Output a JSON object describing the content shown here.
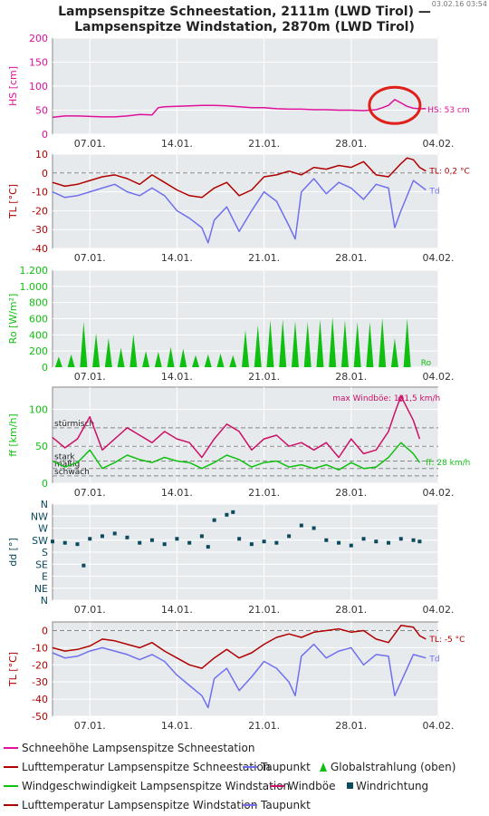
{
  "timestamp": "03.02.16 03:54",
  "title": "Lampsenspitze Schneestation, 2111m (LWD Tirol) — Lampsenspitze Windstation, 2870m (LWD Tirol)",
  "colors": {
    "snow": "#e0109a",
    "temp": "#b00000",
    "dew": "#7070ee",
    "radiation": "#10c010",
    "wind": "#10c010",
    "gust": "#cc1066",
    "direction": "#0b4a5e",
    "axis_hs": "#e0109a",
    "axis_temp": "#b00000",
    "axis_ro": "#10c010",
    "axis_ff": "#10c010",
    "axis_dd": "#0b4a5e",
    "panel_bg": "#e6eaed",
    "highlight_circle": "#e0201a"
  },
  "chart_data": [
    {
      "type": "line",
      "id": "hs",
      "ylabel": "HS [cm]",
      "ylim": [
        0,
        200
      ],
      "yticks": [
        0,
        50,
        100,
        150,
        200
      ],
      "xlim": [
        0,
        31
      ],
      "xticks": [
        3,
        10,
        17,
        24,
        31
      ],
      "xticklabels": [
        "07.01.",
        "14.01.",
        "21.01.",
        "28.01.",
        "04.02."
      ],
      "series": [
        {
          "name": "Schneehöhe Lampsenspitze Schneestation",
          "color": "snow",
          "x": [
            0,
            1,
            2,
            3,
            4,
            5,
            6,
            7,
            8,
            8.5,
            9,
            10,
            11,
            12,
            13,
            14,
            15,
            16,
            17,
            18,
            19,
            20,
            21,
            22,
            23,
            24,
            25,
            26,
            26.5,
            27,
            27.5,
            28,
            28.5,
            29,
            29.5,
            30
          ],
          "y": [
            35,
            38,
            38,
            37,
            36,
            36,
            38,
            41,
            40,
            55,
            57,
            58,
            59,
            60,
            60,
            59,
            57,
            55,
            55,
            53,
            52,
            52,
            51,
            51,
            50,
            50,
            49,
            51,
            55,
            60,
            72,
            65,
            58,
            54,
            53,
            53
          ]
        }
      ],
      "annotations": [
        {
          "text": "HS: 53 cm"
        }
      ],
      "highlight": {
        "x": 27.5,
        "y": 60
      }
    },
    {
      "type": "line",
      "id": "tl_schnee",
      "ylabel": "TL [°C]",
      "ylim": [
        -40,
        10
      ],
      "yticks": [
        -40,
        -30,
        -20,
        -10,
        0,
        10
      ],
      "xlim": [
        0,
        31
      ],
      "xticks": [
        3,
        10,
        17,
        24,
        31
      ],
      "xticklabels": [
        "07.01.",
        "14.01.",
        "21.01.",
        "28.01.",
        "04.02."
      ],
      "series": [
        {
          "name": "Lufttemperatur Lampsenspitze Schneestation",
          "color": "temp",
          "x": [
            0,
            1,
            2,
            3,
            4,
            5,
            6,
            7,
            8,
            9,
            10,
            11,
            12,
            13,
            14,
            15,
            16,
            17,
            18,
            19,
            20,
            21,
            22,
            23,
            24,
            25,
            26,
            27,
            28,
            28.5,
            29,
            29.5,
            30
          ],
          "y": [
            -5,
            -7,
            -6,
            -4,
            -2,
            -1,
            -3,
            -6,
            -1,
            -5,
            -9,
            -12,
            -13,
            -8,
            -5,
            -12,
            -9,
            -2,
            -1,
            1,
            -1,
            3,
            2,
            4,
            3,
            6,
            -1,
            -2,
            5,
            8,
            7,
            3,
            1
          ]
        },
        {
          "name": "Taupunkt",
          "color": "dew",
          "x": [
            0,
            1,
            2,
            3,
            4,
            5,
            6,
            7,
            8,
            9,
            10,
            11,
            12,
            12.5,
            13,
            14,
            15,
            16,
            17,
            18,
            19,
            19.5,
            20,
            21,
            22,
            23,
            24,
            25,
            26,
            27,
            27.5,
            28,
            29,
            30
          ],
          "y": [
            -10,
            -13,
            -12,
            -10,
            -8,
            -6,
            -10,
            -12,
            -8,
            -12,
            -20,
            -24,
            -29,
            -37,
            -25,
            -18,
            -31,
            -20,
            -10,
            -15,
            -28,
            -35,
            -10,
            -3,
            -11,
            -5,
            -8,
            -14,
            -6,
            -8,
            -29,
            -20,
            -4,
            -9
          ]
        }
      ],
      "annotations": [
        {
          "text": "TL: 0,2 °C"
        },
        {
          "text": "Td"
        }
      ]
    },
    {
      "type": "area",
      "id": "ro",
      "ylabel": "Ro [W/m²]",
      "ylim": [
        0,
        1200
      ],
      "yticks": [
        0,
        200,
        400,
        600,
        800,
        1000,
        1200
      ],
      "yticklabels": [
        "0",
        "200",
        "400",
        "600",
        "800",
        "1.000",
        "1.200"
      ],
      "xlim": [
        0,
        31
      ],
      "xticks": [
        3,
        10,
        17,
        24,
        31
      ],
      "xticklabels": [
        "07.01.",
        "14.01.",
        "21.01.",
        "28.01.",
        "04.02."
      ],
      "series": [
        {
          "name": "Globalstrahlung (oben)",
          "color": "radiation",
          "x": [
            0.5,
            1.5,
            2.5,
            3.5,
            4.5,
            5.5,
            6.5,
            7.5,
            8.5,
            9.5,
            10.5,
            11.5,
            12.5,
            13.5,
            14.5,
            15.5,
            16.5,
            17.5,
            18.5,
            19.5,
            20.5,
            21.5,
            22.5,
            23.5,
            24.5,
            25.5,
            26.5,
            27.5,
            28.5
          ],
          "y": [
            130,
            160,
            560,
            420,
            360,
            240,
            410,
            200,
            190,
            250,
            230,
            150,
            160,
            170,
            150,
            460,
            520,
            580,
            590,
            570,
            560,
            590,
            620,
            580,
            560,
            560,
            610,
            360,
            600
          ]
        }
      ],
      "annotations": [
        {
          "text": "Ro"
        }
      ]
    },
    {
      "type": "line",
      "id": "ff",
      "ylabel": "ff [km/h]",
      "ylim": [
        0,
        130
      ],
      "yticks": [
        0,
        50,
        100
      ],
      "xlim": [
        0,
        31
      ],
      "xticks": [
        3,
        10,
        17,
        24,
        31
      ],
      "xticklabels": [
        "07.01.",
        "14.01.",
        "21.01.",
        "28.01.",
        "04.02."
      ],
      "reference_lines": [
        {
          "y": 75,
          "label": "stürmisch"
        },
        {
          "y": 50,
          "label": ""
        },
        {
          "y": 30,
          "label": "stark"
        },
        {
          "y": 20,
          "label": "mäßig"
        },
        {
          "y": 10,
          "label": "schwach"
        }
      ],
      "series": [
        {
          "name": "Windböe",
          "color": "gust",
          "x": [
            0,
            1,
            2,
            3,
            4,
            5,
            6,
            7,
            8,
            9,
            10,
            11,
            12,
            13,
            14,
            15,
            16,
            17,
            18,
            19,
            20,
            21,
            22,
            23,
            24,
            25,
            26,
            27,
            27.5,
            28,
            29,
            29.5
          ],
          "y": [
            62,
            48,
            60,
            90,
            45,
            60,
            75,
            65,
            55,
            70,
            60,
            55,
            35,
            60,
            80,
            70,
            45,
            60,
            65,
            50,
            55,
            45,
            55,
            35,
            60,
            40,
            45,
            70,
            95,
            118,
            85,
            60
          ]
        },
        {
          "name": "Windgeschwindigkeit Lampsenspitze Windstation",
          "color": "wind",
          "x": [
            0,
            1,
            2,
            3,
            4,
            5,
            6,
            7,
            8,
            9,
            10,
            11,
            12,
            13,
            14,
            15,
            16,
            17,
            18,
            19,
            20,
            21,
            22,
            23,
            24,
            25,
            26,
            27,
            27.5,
            28,
            29,
            29.5
          ],
          "y": [
            30,
            22,
            28,
            45,
            20,
            28,
            38,
            32,
            28,
            35,
            30,
            28,
            20,
            28,
            38,
            32,
            22,
            28,
            30,
            22,
            25,
            20,
            25,
            18,
            28,
            20,
            22,
            35,
            45,
            55,
            40,
            28
          ]
        }
      ],
      "annotations": [
        {
          "text": "max Windböe: 121,5 km/h"
        },
        {
          "text": "ff: 28 km/h"
        }
      ]
    },
    {
      "type": "scatter",
      "id": "dd",
      "ylabel": "dd [°]",
      "ylim": [
        0,
        360
      ],
      "yticks": [
        0,
        45,
        90,
        135,
        180,
        225,
        270,
        315,
        360
      ],
      "yticklabels": [
        "N",
        "NE",
        "E",
        "SE",
        "S",
        "SW",
        "W",
        "NW",
        "N"
      ],
      "xlim": [
        0,
        31
      ],
      "xticks": [
        3,
        10,
        17,
        24,
        31
      ],
      "xticklabels": [
        "07.01.",
        "14.01.",
        "21.01.",
        "28.01.",
        "04.02."
      ],
      "series": [
        {
          "name": "Windrichtung",
          "color": "direction",
          "x": [
            0,
            1,
            2,
            2.5,
            3,
            4,
            5,
            6,
            7,
            8,
            9,
            10,
            11,
            12,
            12.5,
            13,
            14,
            14.5,
            15,
            16,
            17,
            18,
            19,
            20,
            21,
            22,
            23,
            24,
            25,
            26,
            27,
            28,
            29,
            29.5
          ],
          "y": [
            220,
            215,
            210,
            130,
            230,
            240,
            250,
            235,
            215,
            225,
            210,
            230,
            215,
            240,
            200,
            300,
            320,
            330,
            230,
            210,
            220,
            215,
            240,
            280,
            270,
            225,
            215,
            205,
            230,
            220,
            215,
            230,
            225,
            220
          ]
        }
      ]
    },
    {
      "type": "line",
      "id": "tl_wind",
      "ylabel": "TL [°C]",
      "ylim": [
        -50,
        5
      ],
      "yticks": [
        -50,
        -40,
        -30,
        -20,
        -10,
        0
      ],
      "xlim": [
        0,
        31
      ],
      "xticks": [
        3,
        10,
        17,
        24,
        31
      ],
      "xticklabels": [
        "07.01.",
        "14.01.",
        "21.01.",
        "28.01.",
        "04.02."
      ],
      "series": [
        {
          "name": "Lufttemperatur Lampsenspitze Windstation",
          "color": "temp",
          "x": [
            0,
            1,
            2,
            3,
            4,
            5,
            6,
            7,
            8,
            9,
            10,
            11,
            12,
            13,
            14,
            15,
            16,
            17,
            18,
            19,
            20,
            21,
            22,
            23,
            24,
            25,
            26,
            27,
            28,
            29,
            29.5,
            30
          ],
          "y": [
            -10,
            -12,
            -11,
            -9,
            -5,
            -6,
            -8,
            -10,
            -7,
            -12,
            -16,
            -20,
            -22,
            -16,
            -11,
            -16,
            -13,
            -8,
            -4,
            -2,
            -4,
            -1,
            0,
            1,
            -1,
            0,
            -5,
            -7,
            3,
            2,
            -3,
            -5
          ]
        },
        {
          "name": "Taupunkt",
          "color": "dew",
          "x": [
            0,
            1,
            2,
            3,
            4,
            5,
            6,
            7,
            8,
            9,
            10,
            11,
            12,
            12.5,
            13,
            14,
            15,
            16,
            17,
            18,
            19,
            19.5,
            20,
            21,
            22,
            23,
            24,
            25,
            26,
            27,
            27.5,
            28,
            29,
            30
          ],
          "y": [
            -13,
            -16,
            -15,
            -12,
            -10,
            -12,
            -14,
            -17,
            -14,
            -18,
            -26,
            -32,
            -38,
            -45,
            -28,
            -22,
            -35,
            -27,
            -18,
            -22,
            -30,
            -38,
            -15,
            -8,
            -16,
            -12,
            -10,
            -20,
            -14,
            -15,
            -38,
            -30,
            -14,
            -16
          ]
        }
      ],
      "annotations": [
        {
          "text": "TL: -5 °C"
        },
        {
          "text": "Td"
        }
      ]
    }
  ],
  "legend": {
    "rows": [
      [
        {
          "label": "Schneehöhe Lampsenspitze Schneestation",
          "color": "snow",
          "marker": "line"
        }
      ],
      [
        {
          "label": "Lufttemperatur Lampsenspitze Schneestation",
          "color": "temp",
          "marker": "line"
        },
        {
          "label": "Taupunkt",
          "color": "dew",
          "marker": "line"
        },
        {
          "label": "Globalstrahlung (oben)",
          "color": "radiation",
          "marker": "mountain"
        }
      ],
      [
        {
          "label": "Windgeschwindigkeit Lampsenspitze Windstation",
          "color": "wind",
          "marker": "line"
        },
        {
          "label": "Windböe",
          "color": "gust",
          "marker": "line"
        },
        {
          "label": "Windrichtung",
          "color": "direction",
          "marker": "square"
        }
      ],
      [
        {
          "label": "Lufttemperatur Lampsenspitze Windstation",
          "color": "temp",
          "marker": "line"
        },
        {
          "label": "Taupunkt",
          "color": "dew",
          "marker": "line"
        }
      ]
    ]
  }
}
